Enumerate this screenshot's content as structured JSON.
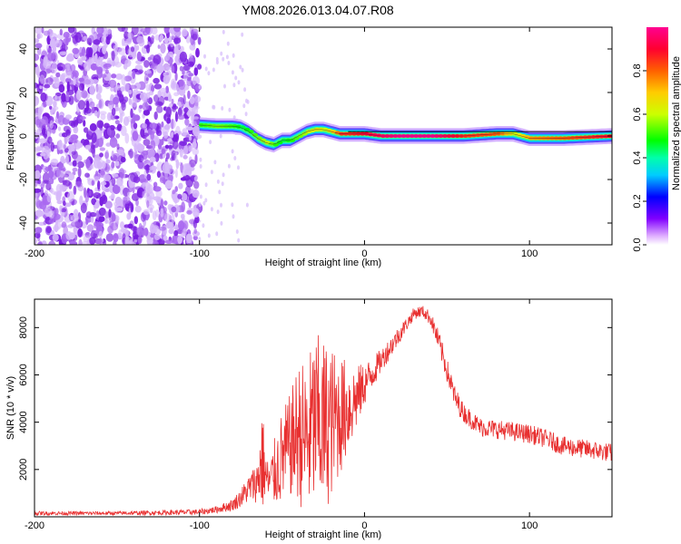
{
  "title": "YM08.2026.013.04.07.R08",
  "colors": {
    "snr_line": "#e83030",
    "spectrogram_scatter": "#8a2be2",
    "ridge_core": "#e0304a"
  },
  "chart_data": [
    {
      "type": "heatmap",
      "id": "spectrogram",
      "xlabel": "Height of straight line (km)",
      "ylabel": "Frequency (Hz)",
      "xlim": [
        -200,
        150
      ],
      "ylim": [
        -50,
        50
      ],
      "xticks": [
        -200,
        -100,
        0,
        100
      ],
      "yticks": [
        -40,
        -20,
        0,
        20,
        40
      ],
      "colorbar": {
        "label": "Normalized spectral amplitude",
        "range": [
          0,
          1
        ],
        "ticks": [
          0.0,
          0.2,
          0.4,
          0.6,
          0.8
        ],
        "tick_labels": [
          "0.0",
          "0.2",
          "0.4",
          "0.6",
          "0.8"
        ]
      },
      "noise_region_x": [
        -200,
        -100
      ],
      "ridge": {
        "x": [
          -100,
          -90,
          -80,
          -75,
          -70,
          -65,
          -60,
          -55,
          -50,
          -45,
          -40,
          -35,
          -30,
          -25,
          -20,
          -15,
          -10,
          0,
          10,
          20,
          40,
          60,
          80,
          90,
          100,
          120,
          150
        ],
        "frequency": [
          5,
          4.5,
          4.5,
          4,
          2,
          -1,
          -3,
          -4,
          -2,
          -2,
          0,
          2,
          3,
          3,
          2,
          1,
          1,
          1,
          0,
          0,
          0,
          0,
          1,
          1,
          -1,
          -1,
          0
        ],
        "amplitude": [
          0.5,
          0.55,
          0.5,
          0.45,
          0.5,
          0.55,
          0.6,
          0.5,
          0.45,
          0.5,
          0.55,
          0.6,
          0.65,
          0.6,
          0.7,
          0.85,
          0.85,
          0.9,
          0.95,
          1.0,
          1.0,
          0.85,
          0.8,
          0.6,
          0.75,
          0.8,
          0.9
        ]
      }
    },
    {
      "type": "line",
      "id": "snr",
      "xlabel": "Height of straight line (km)",
      "ylabel": "SNR (10 * v/v)",
      "xlim": [
        -200,
        150
      ],
      "ylim": [
        0,
        9200
      ],
      "xticks": [
        -200,
        -100,
        0,
        100
      ],
      "yticks": [
        2000,
        4000,
        6000,
        8000
      ],
      "envelope": {
        "x": [
          -200,
          -150,
          -100,
          -90,
          -80,
          -75,
          -70,
          -65,
          -62,
          -60,
          -58,
          -55,
          -50,
          -45,
          -40,
          -35,
          -30,
          -25,
          -20,
          -15,
          -10,
          -5,
          0,
          10,
          20,
          25,
          30,
          35,
          40,
          45,
          50,
          55,
          60,
          70,
          80,
          90,
          100,
          110,
          120,
          130,
          140,
          150
        ],
        "mean": [
          150,
          150,
          200,
          300,
          500,
          800,
          1200,
          1500,
          2500,
          1800,
          1400,
          1800,
          2500,
          3000,
          3600,
          3200,
          4000,
          3800,
          4000,
          4300,
          4600,
          5000,
          5600,
          6600,
          7600,
          8100,
          8600,
          8700,
          8400,
          7400,
          6200,
          5000,
          4400,
          3800,
          3700,
          3600,
          3500,
          3300,
          3000,
          2900,
          2800,
          2700
        ],
        "amp": [
          80,
          80,
          120,
          150,
          250,
          400,
          600,
          900,
          2400,
          1000,
          900,
          1400,
          2000,
          2200,
          3000,
          3400,
          3800,
          3800,
          3200,
          2600,
          2000,
          1400,
          900,
          500,
          400,
          300,
          250,
          250,
          300,
          500,
          500,
          500,
          400,
          400,
          400,
          400,
          400,
          400,
          400,
          400,
          400,
          400
        ]
      }
    }
  ]
}
